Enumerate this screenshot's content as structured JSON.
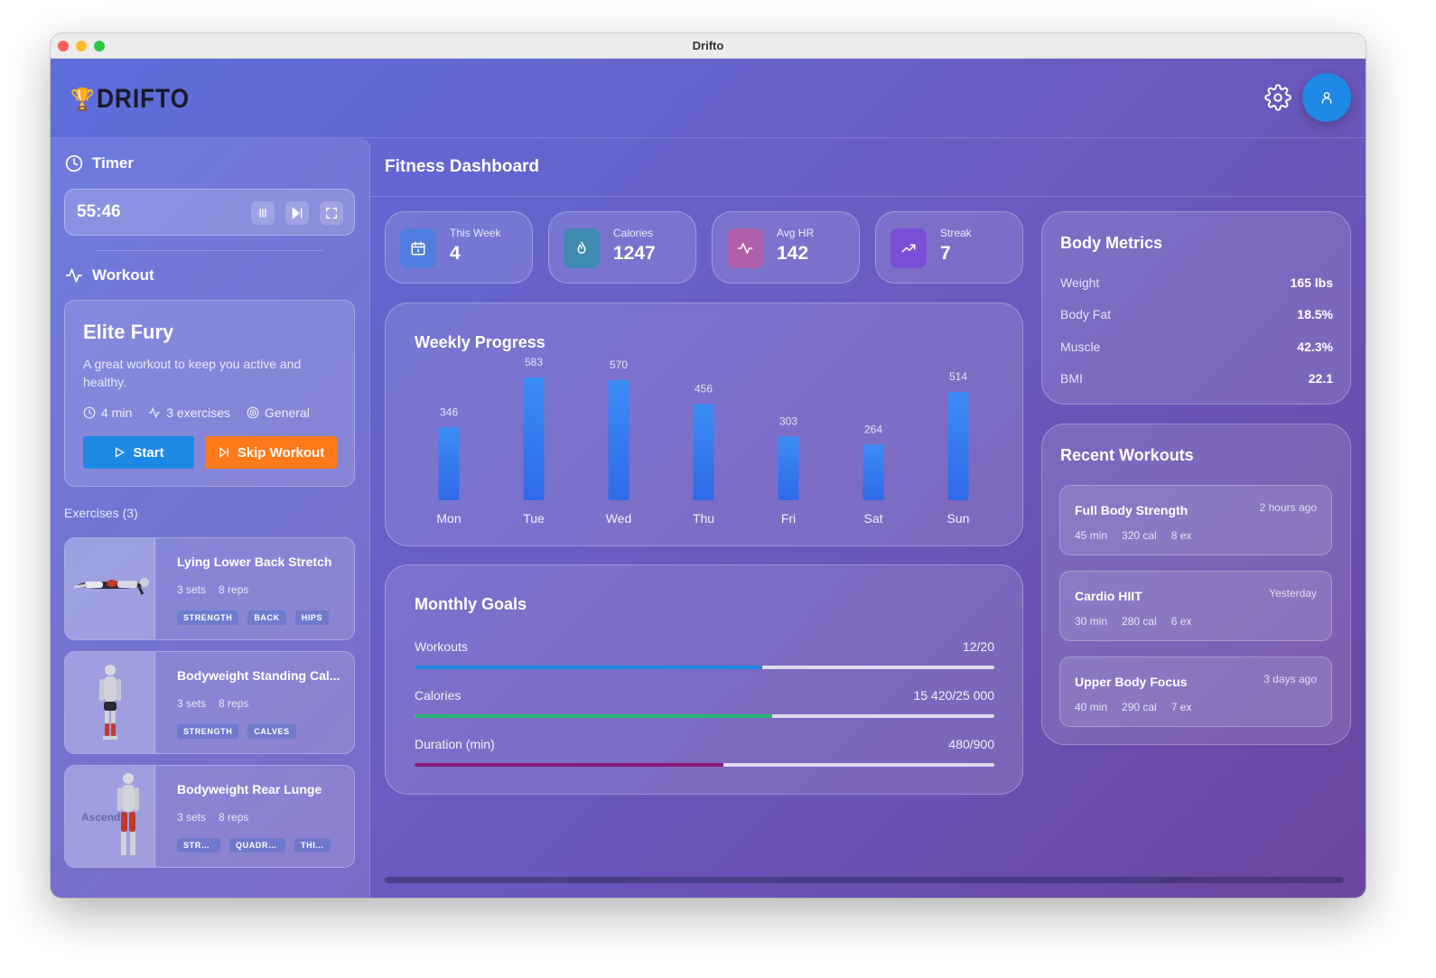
{
  "window": {
    "title": "Drifto"
  },
  "header": {
    "brand": "DRIFTO"
  },
  "sidebar": {
    "timer": {
      "title": "Timer",
      "value": "55:46"
    },
    "workout": {
      "title": "Workout",
      "name": "Elite Fury",
      "description": "A great workout to keep you active and healthy.",
      "duration": "4 min",
      "exercises": "3 exercises",
      "category": "General",
      "start_label": "Start",
      "skip_label": "Skip Workout"
    },
    "exercises_heading": "Exercises (3)",
    "exercises": [
      {
        "name": "Lying Lower Back Stretch",
        "sets": "3 sets",
        "reps": "8 reps",
        "tags": [
          "STRENGTH",
          "BACK",
          "HIPS"
        ]
      },
      {
        "name": "Bodyweight Standing Cal...",
        "sets": "3 sets",
        "reps": "8 reps",
        "tags": [
          "STRENGTH",
          "CALVES"
        ]
      },
      {
        "name": "Bodyweight Rear Lunge",
        "sets": "3 sets",
        "reps": "8 reps",
        "tags": [
          "STRE...",
          "QUADRI...",
          "THI..."
        ],
        "image_text": "Ascend"
      }
    ]
  },
  "main": {
    "title": "Fitness Dashboard",
    "stats": [
      {
        "label": "This Week",
        "value": "4",
        "icon": "calendar-icon",
        "color": "#4f7de0"
      },
      {
        "label": "Calories",
        "value": "1247",
        "icon": "flame-icon",
        "color": "#3f8ab0"
      },
      {
        "label": "Avg HR",
        "value": "142",
        "icon": "heartbeat-icon",
        "color": "#b060a8"
      },
      {
        "label": "Streak",
        "value": "7",
        "icon": "trending-up-icon",
        "color": "#7a4fd6"
      }
    ],
    "weekly": {
      "title": "Weekly Progress"
    },
    "goals": {
      "title": "Monthly Goals",
      "items": [
        {
          "label": "Workouts",
          "value": "12/20",
          "progress": 0.6,
          "color": "#1e88e5"
        },
        {
          "label": "Calories",
          "value": "15 420/25 000",
          "progress": 0.617,
          "color": "#2bb673"
        },
        {
          "label": "Duration (min)",
          "value": "480/900",
          "progress": 0.533,
          "color": "#8a1a7a"
        }
      ]
    },
    "body_metrics": {
      "title": "Body Metrics",
      "items": [
        {
          "label": "Weight",
          "value": "165 lbs"
        },
        {
          "label": "Body Fat",
          "value": "18.5%"
        },
        {
          "label": "Muscle",
          "value": "42.3%"
        },
        {
          "label": "BMI",
          "value": "22.1"
        }
      ]
    },
    "recent": {
      "title": "Recent Workouts",
      "items": [
        {
          "name": "Full Body Strength",
          "time": "2 hours ago",
          "duration": "45 min",
          "calories": "320 cal",
          "exercises": "8 ex"
        },
        {
          "name": "Cardio HIIT",
          "time": "Yesterday",
          "duration": "30 min",
          "calories": "280 cal",
          "exercises": "6 ex"
        },
        {
          "name": "Upper Body Focus",
          "time": "3 days ago",
          "duration": "40 min",
          "calories": "290 cal",
          "exercises": "7 ex"
        }
      ]
    }
  },
  "chart_data": {
    "type": "bar",
    "title": "Weekly Progress",
    "categories": [
      "Mon",
      "Tue",
      "Wed",
      "Thu",
      "Fri",
      "Sat",
      "Sun"
    ],
    "values": [
      346,
      583,
      570,
      456,
      303,
      264,
      514
    ],
    "color": "#3b82f6"
  }
}
